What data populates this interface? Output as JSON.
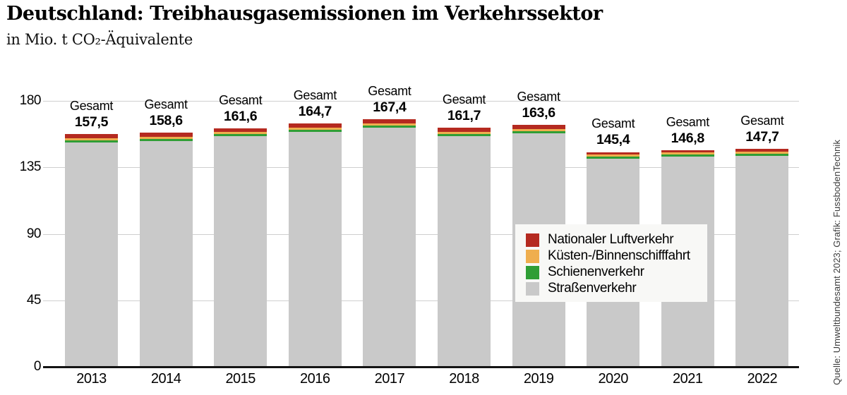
{
  "header": {
    "title": "Deutschland: Treibhausgasemissionen im Verkehrssektor",
    "subtitle": "in Mio. t CO₂-Äquivalente"
  },
  "source_note": "Quelle: Umweltbundesamt 2023; Grafik: FussbodenTechnik",
  "colors": {
    "luftverkehr": "#b52a20",
    "schifffahrt": "#efae4e",
    "schienenverkehr": "#2f9e35",
    "strassenverkehr": "#c9c9c9",
    "gridline": "#cfcfcf",
    "axis": "#141414",
    "legend_background": "#f8f8f6"
  },
  "chart_data": {
    "type": "bar",
    "subtype": "stacked",
    "title": "Deutschland: Treibhausgasemissionen im Verkehrssektor",
    "ylabel": "in Mio. t CO2-Äquivalente",
    "xlabel": "",
    "grid": true,
    "ylim": [
      0,
      180
    ],
    "yticks": [
      0,
      45,
      90,
      135,
      180
    ],
    "ytick_labels": [
      "0",
      "45",
      "90",
      "135",
      "180"
    ],
    "categories": [
      "2013",
      "2014",
      "2015",
      "2016",
      "2017",
      "2018",
      "2019",
      "2020",
      "2021",
      "2022"
    ],
    "totals": [
      157.5,
      158.6,
      161.6,
      164.7,
      167.4,
      161.7,
      163.6,
      145.4,
      146.8,
      147.7
    ],
    "total_label_prefix": "Gesamt",
    "total_labels": [
      "157,5",
      "158,6",
      "161,6",
      "164,7",
      "167,4",
      "161,7",
      "163,6",
      "145,4",
      "146,8",
      "147,7"
    ],
    "series": [
      {
        "name": "Straßenverkehr",
        "color": "#c9c9c9",
        "values": [
          151.8,
          152.9,
          156.0,
          159.1,
          161.8,
          156.1,
          158.0,
          140.8,
          142.2,
          143.0
        ]
      },
      {
        "name": "Schienenverkehr",
        "color": "#2f9e35",
        "values": [
          1.4,
          1.4,
          1.4,
          1.4,
          1.4,
          1.4,
          1.4,
          1.4,
          1.4,
          1.4
        ]
      },
      {
        "name": "Küsten-/Binnenschifffahrt",
        "color": "#efae4e",
        "values": [
          1.4,
          1.4,
          1.4,
          1.4,
          1.4,
          1.4,
          1.4,
          1.4,
          1.4,
          1.4
        ]
      },
      {
        "name": "Nationaler Luftverkehr",
        "color": "#b52a20",
        "values": [
          2.9,
          2.9,
          2.8,
          2.8,
          2.8,
          2.8,
          2.8,
          1.8,
          1.8,
          1.9
        ]
      }
    ],
    "legend_position": "center-right",
    "legend_order": [
      "Nationaler Luftverkehr",
      "Küsten-/Binnenschifffahrt",
      "Schienenverkehr",
      "Straßenverkehr"
    ]
  }
}
